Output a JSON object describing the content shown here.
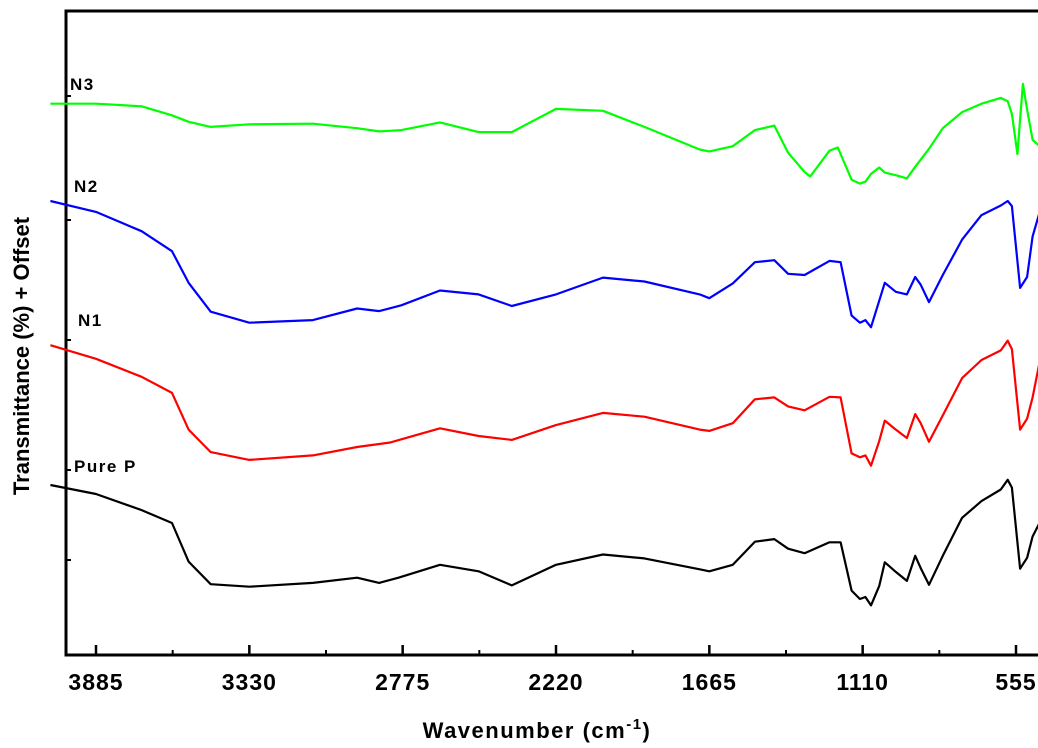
{
  "chart_data": {
    "type": "line",
    "title": "",
    "xlabel": "Wavenumber (cm",
    "xlabel_sup": "-1",
    "xlabel_end": ")",
    "ylabel": "Transmittance (%) + Offset",
    "x_reversed": true,
    "xlim": [
      4050,
      470
    ],
    "ylim": [
      0,
      100
    ],
    "xticks": [
      3885,
      3330,
      2775,
      2220,
      1665,
      1110,
      555
    ],
    "xtick_labels": [
      "3885",
      "3330",
      "2775",
      "2220",
      "1665",
      "1110",
      "555"
    ],
    "grid": false,
    "series": [
      {
        "name": "Pure P",
        "color": "#000000",
        "points": [
          [
            4050,
            26.4
          ],
          [
            3885,
            25.0
          ],
          [
            3720,
            22.5
          ],
          [
            3610,
            20.5
          ],
          [
            3550,
            14.5
          ],
          [
            3470,
            11.0
          ],
          [
            3330,
            10.6
          ],
          [
            3100,
            11.2
          ],
          [
            2940,
            12.0
          ],
          [
            2860,
            11.2
          ],
          [
            2790,
            12.0
          ],
          [
            2640,
            14.0
          ],
          [
            2500,
            13.0
          ],
          [
            2380,
            10.8
          ],
          [
            2220,
            14.0
          ],
          [
            2050,
            15.6
          ],
          [
            1900,
            15.0
          ],
          [
            1700,
            13.3
          ],
          [
            1665,
            13.0
          ],
          [
            1580,
            14.0
          ],
          [
            1500,
            17.6
          ],
          [
            1430,
            18.0
          ],
          [
            1380,
            16.5
          ],
          [
            1320,
            15.8
          ],
          [
            1230,
            17.5
          ],
          [
            1190,
            17.5
          ],
          [
            1150,
            10.0
          ],
          [
            1120,
            8.7
          ],
          [
            1100,
            9.0
          ],
          [
            1080,
            7.7
          ],
          [
            1050,
            10.7
          ],
          [
            1030,
            14.4
          ],
          [
            990,
            12.9
          ],
          [
            950,
            11.5
          ],
          [
            920,
            15.4
          ],
          [
            900,
            13.5
          ],
          [
            870,
            10.9
          ],
          [
            820,
            15.4
          ],
          [
            750,
            21.3
          ],
          [
            680,
            23.9
          ],
          [
            610,
            25.7
          ],
          [
            585,
            27.2
          ],
          [
            570,
            26.0
          ],
          [
            540,
            13.4
          ],
          [
            515,
            15.1
          ],
          [
            495,
            18.4
          ],
          [
            470,
            20.5
          ]
        ]
      },
      {
        "name": "N1",
        "color": "#ff0000",
        "points": [
          [
            4050,
            48.1
          ],
          [
            3885,
            46.0
          ],
          [
            3720,
            43.2
          ],
          [
            3610,
            40.7
          ],
          [
            3550,
            35.0
          ],
          [
            3470,
            31.5
          ],
          [
            3330,
            30.3
          ],
          [
            3100,
            31.0
          ],
          [
            2940,
            32.3
          ],
          [
            2820,
            33.0
          ],
          [
            2780,
            33.5
          ],
          [
            2640,
            35.2
          ],
          [
            2500,
            34.0
          ],
          [
            2380,
            33.4
          ],
          [
            2220,
            35.7
          ],
          [
            2050,
            37.6
          ],
          [
            1900,
            37.0
          ],
          [
            1700,
            35.0
          ],
          [
            1665,
            34.8
          ],
          [
            1580,
            36.0
          ],
          [
            1500,
            39.7
          ],
          [
            1430,
            40.0
          ],
          [
            1380,
            38.6
          ],
          [
            1320,
            38.0
          ],
          [
            1230,
            40.1
          ],
          [
            1190,
            40.0
          ],
          [
            1150,
            31.3
          ],
          [
            1120,
            30.7
          ],
          [
            1100,
            31.0
          ],
          [
            1080,
            29.4
          ],
          [
            1050,
            33.2
          ],
          [
            1030,
            36.4
          ],
          [
            990,
            35.0
          ],
          [
            950,
            33.7
          ],
          [
            920,
            37.4
          ],
          [
            900,
            36.0
          ],
          [
            870,
            33.1
          ],
          [
            820,
            37.2
          ],
          [
            750,
            43.0
          ],
          [
            680,
            45.8
          ],
          [
            610,
            47.3
          ],
          [
            585,
            48.8
          ],
          [
            570,
            47.5
          ],
          [
            540,
            35.0
          ],
          [
            515,
            36.7
          ],
          [
            495,
            40.0
          ],
          [
            470,
            45.4
          ]
        ]
      },
      {
        "name": "N2",
        "color": "#0000ff",
        "points": [
          [
            4050,
            70.5
          ],
          [
            3885,
            68.8
          ],
          [
            3720,
            65.8
          ],
          [
            3610,
            62.7
          ],
          [
            3550,
            57.8
          ],
          [
            3470,
            53.3
          ],
          [
            3330,
            51.6
          ],
          [
            3100,
            52.0
          ],
          [
            2940,
            53.8
          ],
          [
            2860,
            53.4
          ],
          [
            2780,
            54.3
          ],
          [
            2640,
            56.6
          ],
          [
            2500,
            56.0
          ],
          [
            2380,
            54.2
          ],
          [
            2220,
            56.0
          ],
          [
            2050,
            58.6
          ],
          [
            1900,
            58.0
          ],
          [
            1700,
            56.0
          ],
          [
            1665,
            55.4
          ],
          [
            1580,
            57.7
          ],
          [
            1500,
            61.0
          ],
          [
            1430,
            61.3
          ],
          [
            1380,
            59.2
          ],
          [
            1320,
            59.0
          ],
          [
            1230,
            61.2
          ],
          [
            1190,
            61.0
          ],
          [
            1150,
            52.7
          ],
          [
            1120,
            51.6
          ],
          [
            1100,
            52.0
          ],
          [
            1080,
            50.9
          ],
          [
            1050,
            55.0
          ],
          [
            1030,
            57.8
          ],
          [
            990,
            56.4
          ],
          [
            950,
            56.0
          ],
          [
            920,
            58.7
          ],
          [
            900,
            57.5
          ],
          [
            870,
            54.8
          ],
          [
            820,
            59.0
          ],
          [
            750,
            64.5
          ],
          [
            680,
            68.3
          ],
          [
            610,
            69.8
          ],
          [
            585,
            70.5
          ],
          [
            570,
            69.7
          ],
          [
            540,
            57.0
          ],
          [
            515,
            58.7
          ],
          [
            495,
            65.0
          ],
          [
            470,
            68.7
          ]
        ]
      },
      {
        "name": "N3",
        "color": "#00ff00",
        "points": [
          [
            4050,
            85.6
          ],
          [
            3885,
            85.6
          ],
          [
            3720,
            85.2
          ],
          [
            3610,
            83.8
          ],
          [
            3550,
            82.8
          ],
          [
            3470,
            82.0
          ],
          [
            3330,
            82.4
          ],
          [
            3100,
            82.5
          ],
          [
            2940,
            81.8
          ],
          [
            2860,
            81.3
          ],
          [
            2780,
            81.5
          ],
          [
            2640,
            82.7
          ],
          [
            2500,
            81.2
          ],
          [
            2380,
            81.2
          ],
          [
            2220,
            84.8
          ],
          [
            2050,
            84.5
          ],
          [
            1900,
            82.0
          ],
          [
            1700,
            78.5
          ],
          [
            1665,
            78.2
          ],
          [
            1580,
            79.0
          ],
          [
            1500,
            81.5
          ],
          [
            1430,
            82.2
          ],
          [
            1380,
            78.0
          ],
          [
            1320,
            75.0
          ],
          [
            1300,
            74.3
          ],
          [
            1230,
            78.3
          ],
          [
            1200,
            78.8
          ],
          [
            1150,
            73.8
          ],
          [
            1120,
            73.2
          ],
          [
            1100,
            73.5
          ],
          [
            1080,
            74.7
          ],
          [
            1050,
            75.7
          ],
          [
            1030,
            74.9
          ],
          [
            990,
            74.5
          ],
          [
            950,
            74.0
          ],
          [
            920,
            75.8
          ],
          [
            870,
            78.6
          ],
          [
            820,
            81.8
          ],
          [
            750,
            84.3
          ],
          [
            680,
            85.6
          ],
          [
            610,
            86.5
          ],
          [
            585,
            86.0
          ],
          [
            570,
            84.0
          ],
          [
            550,
            77.8
          ],
          [
            530,
            88.7
          ],
          [
            515,
            84.7
          ],
          [
            495,
            80.0
          ],
          [
            470,
            79.0
          ]
        ]
      }
    ]
  }
}
